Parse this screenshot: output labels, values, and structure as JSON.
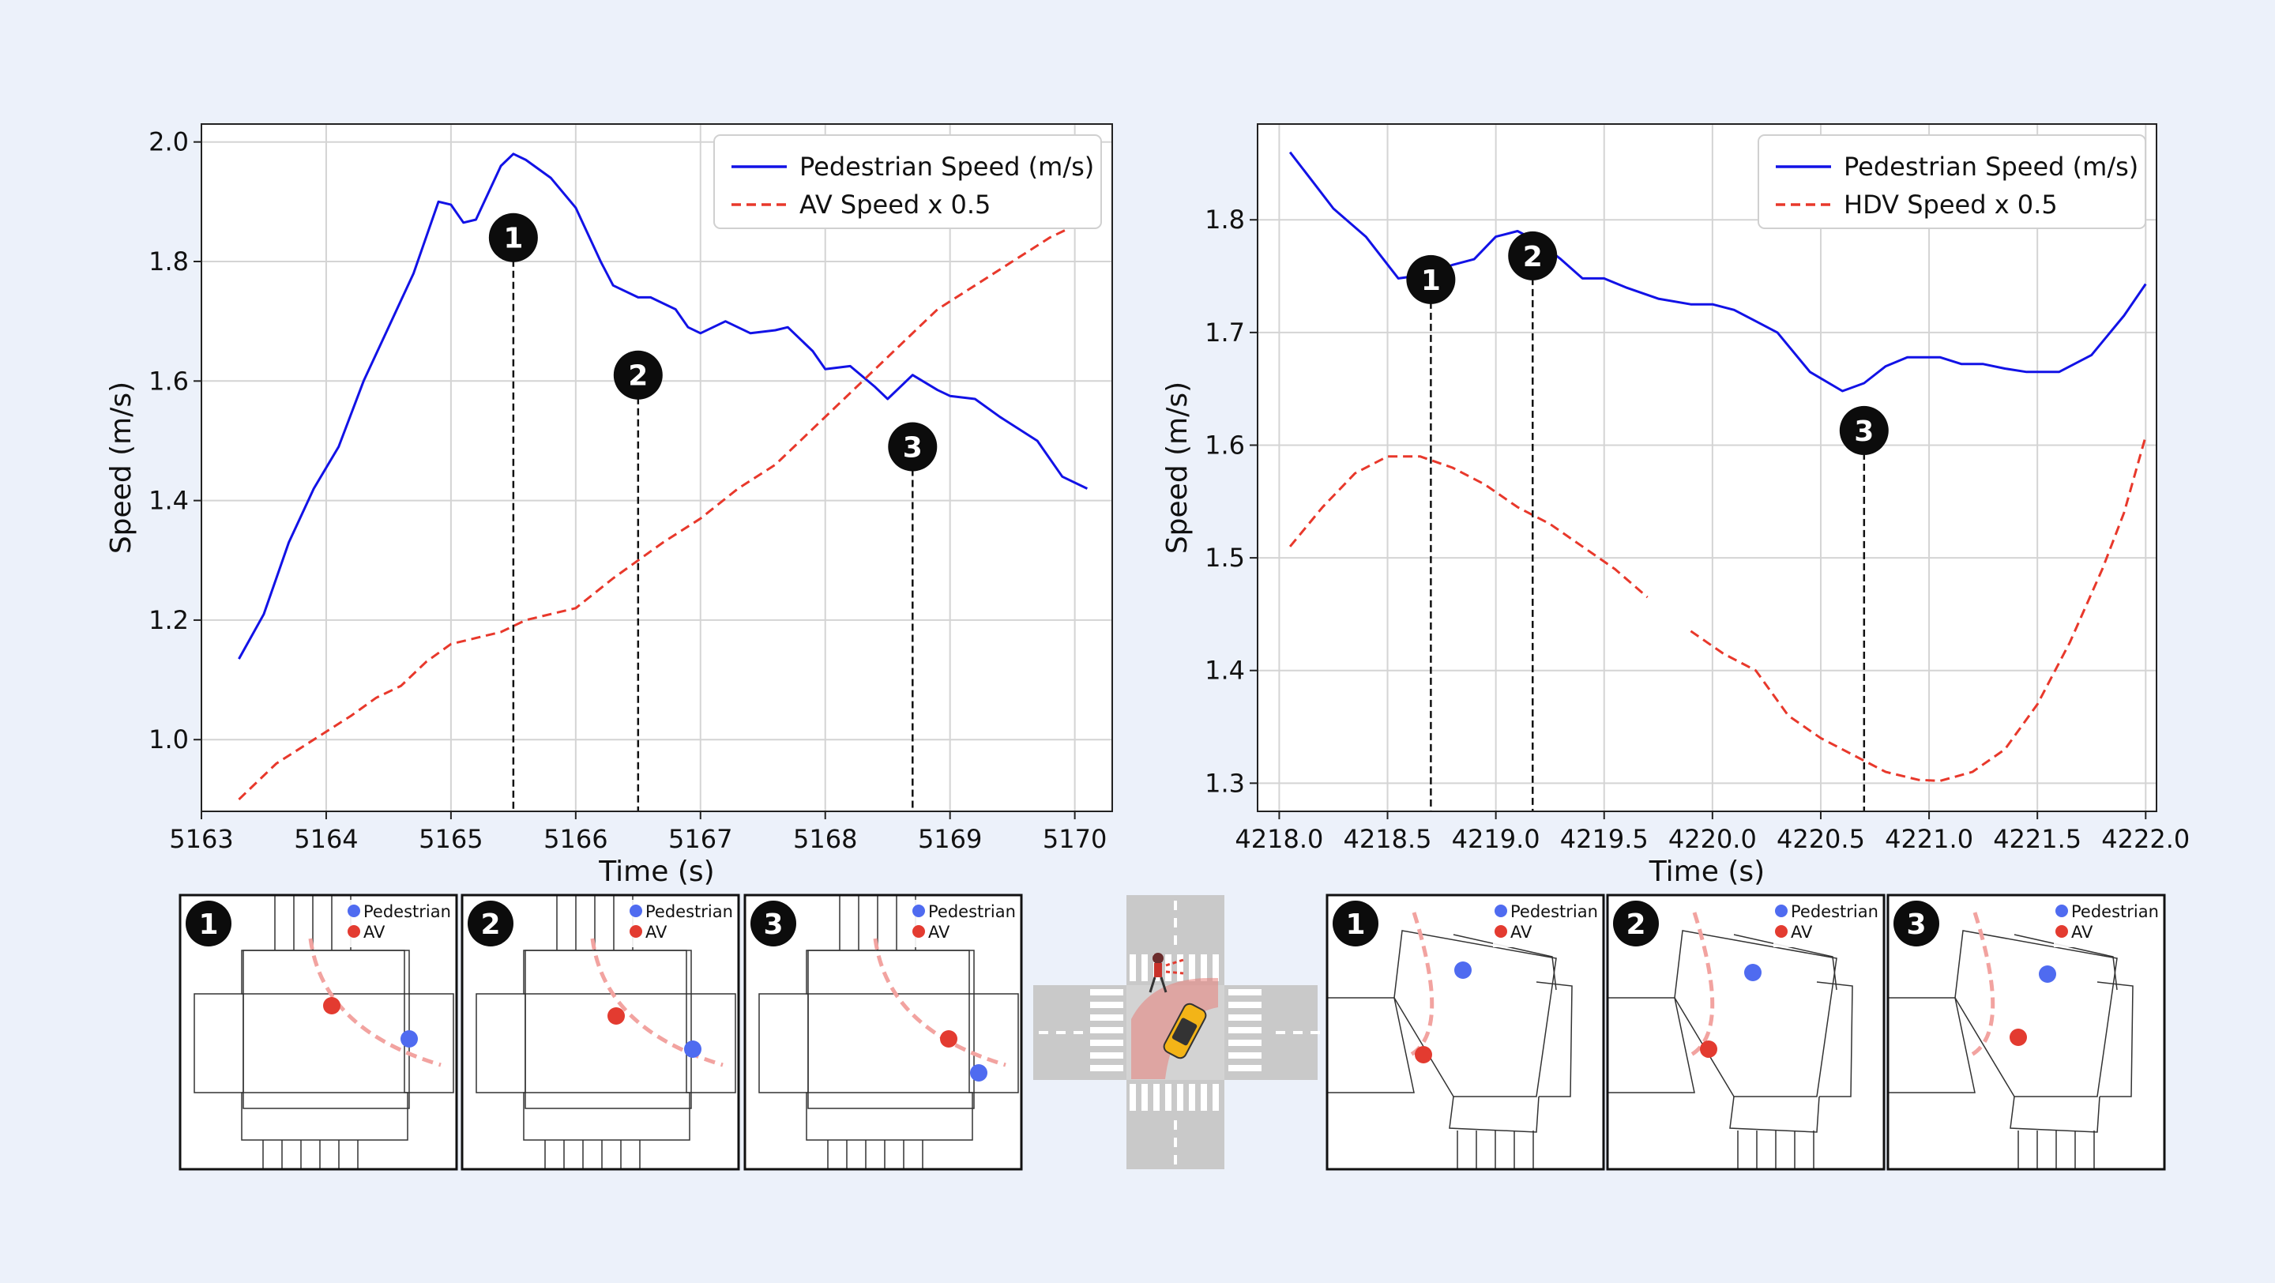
{
  "colors": {
    "background": "#ecf1fa",
    "pedestrian": "#1212e6",
    "vehicle": "#e8382b",
    "grid": "#d4d4d4",
    "pedestrian_dot": "#4f6bf0",
    "vehicle_dot": "#e33b30",
    "path": "#f2a3a0"
  },
  "chart_data": [
    {
      "type": "line",
      "xlabel": "Time (s)",
      "ylabel": "Speed (m/s)",
      "xlim": [
        5163,
        5170.3
      ],
      "ylim": [
        0.88,
        2.03
      ],
      "xticks": [
        5163,
        5164,
        5165,
        5166,
        5167,
        5168,
        5169,
        5170
      ],
      "yticks": [
        1.0,
        1.2,
        1.4,
        1.6,
        1.8,
        2.0
      ],
      "ytick_labels": [
        "1.0",
        "1.2",
        "1.4",
        "1.6",
        "1.8",
        "2.0"
      ],
      "grid": true,
      "legend_position": "top-right",
      "series": [
        {
          "name": "Pedestrian Speed (m/s)",
          "style": "solid",
          "x": [
            5163.3,
            5163.5,
            5163.7,
            5163.9,
            5164.1,
            5164.3,
            5164.5,
            5164.7,
            5164.9,
            5165.0,
            5165.1,
            5165.2,
            5165.4,
            5165.5,
            5165.6,
            5165.8,
            5166.0,
            5166.2,
            5166.3,
            5166.5,
            5166.6,
            5166.8,
            5166.9,
            5167.0,
            5167.2,
            5167.4,
            5167.6,
            5167.7,
            5167.9,
            5168.0,
            5168.2,
            5168.4,
            5168.5,
            5168.7,
            5168.9,
            5169.0,
            5169.2,
            5169.4,
            5169.7,
            5169.9,
            5170.1
          ],
          "y": [
            1.135,
            1.21,
            1.33,
            1.42,
            1.49,
            1.6,
            1.69,
            1.78,
            1.9,
            1.895,
            1.865,
            1.87,
            1.96,
            1.98,
            1.97,
            1.94,
            1.89,
            1.8,
            1.76,
            1.74,
            1.74,
            1.72,
            1.69,
            1.68,
            1.7,
            1.68,
            1.685,
            1.69,
            1.65,
            1.62,
            1.625,
            1.59,
            1.57,
            1.61,
            1.585,
            1.575,
            1.57,
            1.54,
            1.5,
            1.44,
            1.42
          ]
        },
        {
          "name": "AV Speed x 0.5",
          "style": "dashed",
          "x": [
            5163.3,
            5163.6,
            5163.9,
            5164.2,
            5164.4,
            5164.6,
            5164.8,
            5165.0,
            5165.2,
            5165.4,
            5165.6,
            5165.8,
            5166.0,
            5166.3,
            5166.5,
            5166.7,
            5167.0,
            5167.3,
            5167.6,
            5167.9,
            5168.1,
            5168.3,
            5168.6,
            5168.9,
            5169.2,
            5169.5,
            5169.8,
            5170.1
          ],
          "y": [
            0.9,
            0.96,
            1.0,
            1.04,
            1.07,
            1.09,
            1.13,
            1.16,
            1.17,
            1.18,
            1.2,
            1.21,
            1.22,
            1.27,
            1.3,
            1.33,
            1.37,
            1.42,
            1.46,
            1.52,
            1.56,
            1.6,
            1.66,
            1.72,
            1.76,
            1.8,
            1.84,
            1.87
          ]
        }
      ],
      "markers": [
        {
          "label": "1",
          "x": 5165.5,
          "label_y": 1.84
        },
        {
          "label": "2",
          "x": 5166.5,
          "label_y": 1.61
        },
        {
          "label": "3",
          "x": 5168.7,
          "label_y": 1.49
        }
      ]
    },
    {
      "type": "line",
      "xlabel": "Time (s)",
      "ylabel": "Speed (m/s)",
      "xlim": [
        4217.9,
        4222.05
      ],
      "ylim": [
        1.275,
        1.885
      ],
      "xticks": [
        4218.0,
        4218.5,
        4219.0,
        4219.5,
        4220.0,
        4220.5,
        4221.0,
        4221.5,
        4222.0
      ],
      "xtick_labels": [
        "4218.0",
        "4218.5",
        "4219.0",
        "4219.5",
        "4220.0",
        "4220.5",
        "4221.0",
        "4221.5",
        "4222.0"
      ],
      "yticks": [
        1.3,
        1.4,
        1.5,
        1.6,
        1.7,
        1.8
      ],
      "ytick_labels": [
        "1.3",
        "1.4",
        "1.5",
        "1.6",
        "1.7",
        "1.8"
      ],
      "grid": true,
      "legend_position": "top-right",
      "series": [
        {
          "name": "Pedestrian Speed (m/s)",
          "style": "solid",
          "x": [
            4218.05,
            4218.15,
            4218.25,
            4218.4,
            4218.55,
            4218.7,
            4218.8,
            4218.9,
            4219.0,
            4219.1,
            4219.2,
            4219.3,
            4219.4,
            4219.5,
            4219.6,
            4219.75,
            4219.9,
            4220.0,
            4220.1,
            4220.2,
            4220.3,
            4220.45,
            4220.6,
            4220.7,
            4220.8,
            4220.9,
            4221.05,
            4221.15,
            4221.25,
            4221.35,
            4221.45,
            4221.6,
            4221.75,
            4221.9,
            4222.0
          ],
          "y": [
            1.86,
            1.835,
            1.81,
            1.785,
            1.748,
            1.752,
            1.76,
            1.765,
            1.785,
            1.79,
            1.78,
            1.765,
            1.748,
            1.748,
            1.74,
            1.73,
            1.725,
            1.725,
            1.72,
            1.71,
            1.7,
            1.665,
            1.648,
            1.655,
            1.67,
            1.678,
            1.678,
            1.672,
            1.672,
            1.668,
            1.665,
            1.665,
            1.68,
            1.715,
            1.743
          ]
        },
        {
          "name": "HDV Speed x 0.5",
          "style": "dashed",
          "x": [
            4218.05,
            4218.2,
            4218.35,
            4218.5,
            4218.65,
            4218.8,
            4218.95,
            4219.1,
            4219.25,
            4219.4,
            4219.55,
            4219.7,
            null,
            4219.9,
            4220.05,
            4220.2,
            4220.35,
            4220.5,
            4220.65,
            4220.8,
            4220.95,
            4221.05,
            4221.2,
            4221.35,
            4221.5,
            4221.65,
            4221.8,
            4221.9,
            4222.0
          ],
          "y": [
            1.51,
            1.545,
            1.575,
            1.59,
            1.59,
            1.58,
            1.565,
            1.545,
            1.53,
            1.51,
            1.49,
            1.465,
            null,
            1.435,
            1.415,
            1.4,
            1.36,
            1.34,
            1.325,
            1.31,
            1.303,
            1.302,
            1.31,
            1.33,
            1.37,
            1.425,
            1.49,
            1.54,
            1.608
          ]
        }
      ],
      "markers": [
        {
          "label": "1",
          "x": 4218.7,
          "label_y": 1.747
        },
        {
          "label": "2",
          "x": 4219.17,
          "label_y": 1.768
        },
        {
          "label": "3",
          "x": 4220.7,
          "label_y": 1.613
        }
      ]
    }
  ],
  "scenes": [
    {
      "number": "1",
      "legend": [
        "Pedestrian",
        "AV"
      ],
      "layout": "left"
    },
    {
      "number": "2",
      "legend": [
        "Pedestrian",
        "AV"
      ],
      "layout": "left"
    },
    {
      "number": "3",
      "legend": [
        "Pedestrian",
        "AV"
      ],
      "layout": "left"
    },
    {
      "number": "1",
      "legend": [
        "Pedestrian",
        "AV"
      ],
      "layout": "right"
    },
    {
      "number": "2",
      "legend": [
        "Pedestrian",
        "AV"
      ],
      "layout": "right"
    },
    {
      "number": "3",
      "legend": [
        "Pedestrian",
        "AV"
      ],
      "layout": "right"
    }
  ]
}
